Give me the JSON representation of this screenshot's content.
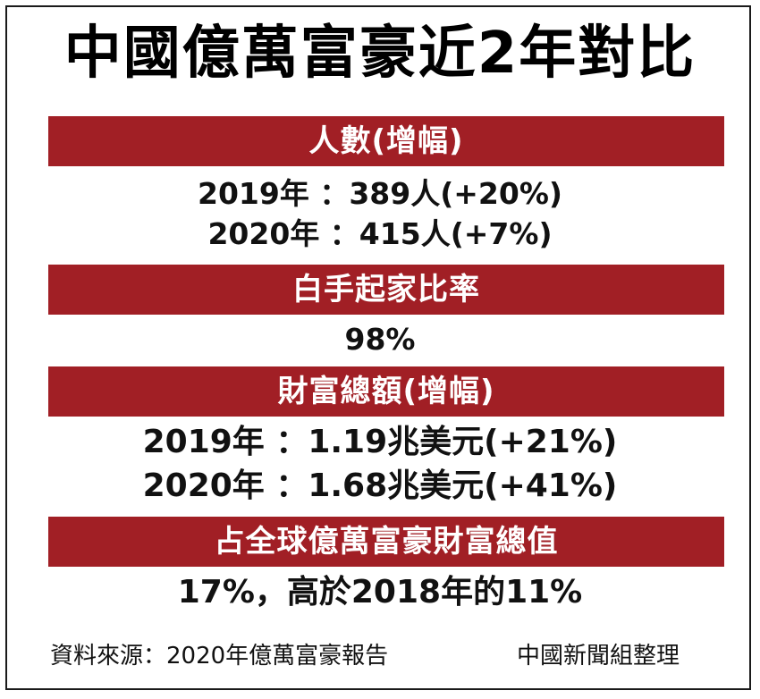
{
  "title": "中國億萬富豪近2年對比",
  "sections": [
    {
      "header": "人數(增幅)",
      "lines": [
        "2019年 ：389人(+20%)",
        "2020年 ：415人(+7%)"
      ]
    },
    {
      "header": "白手起家比率",
      "lines": [
        "98%"
      ]
    },
    {
      "header": "財富總額(增幅)",
      "lines": [
        "2019年 ：1.19兆美元(+21%)",
        "2020年 ：1.68兆美元(+41%)"
      ]
    },
    {
      "header": "占全球億萬富豪財富總值",
      "lines": [
        "17%，高於2018年的11%"
      ]
    }
  ],
  "footer": {
    "source": "資料來源：2020年億萬富豪報告",
    "credit": "中國新聞組整理"
  },
  "colors": {
    "band": "#a11f25",
    "band_text": "#ffffff",
    "text": "#111111"
  }
}
